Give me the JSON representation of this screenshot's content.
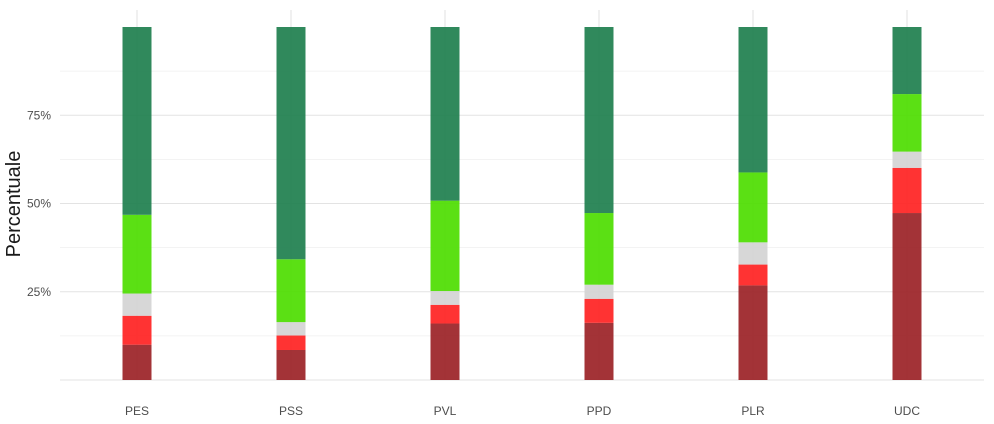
{
  "chart_data": {
    "type": "bar",
    "stacked": true,
    "categories": [
      "PES",
      "PSS",
      "PVL",
      "PPD",
      "PLR",
      "UDC"
    ],
    "series": [
      {
        "color": "#9b2226",
        "values": [
          10.0,
          8.5,
          16.0,
          16.2,
          26.8,
          47.3
        ]
      },
      {
        "color": "#ff2222",
        "values": [
          8.2,
          4.1,
          5.3,
          6.8,
          5.9,
          12.8
        ]
      },
      {
        "color": "#d4d4d4",
        "values": [
          6.3,
          3.8,
          3.9,
          4.0,
          6.3,
          4.6
        ]
      },
      {
        "color": "#4ddd00",
        "values": [
          22.3,
          17.8,
          25.6,
          20.3,
          19.8,
          16.3
        ]
      },
      {
        "color": "#1e7f4e",
        "values": [
          53.2,
          65.8,
          49.2,
          52.7,
          41.2,
          19.0
        ]
      }
    ],
    "ylabel": "Percentuale",
    "xlabel": "",
    "yticks": [
      25,
      50,
      75
    ],
    "ytick_labels": [
      "25%",
      "50%",
      "75%"
    ],
    "ylim": [
      0,
      100
    ],
    "grid": true,
    "legend": "none"
  }
}
